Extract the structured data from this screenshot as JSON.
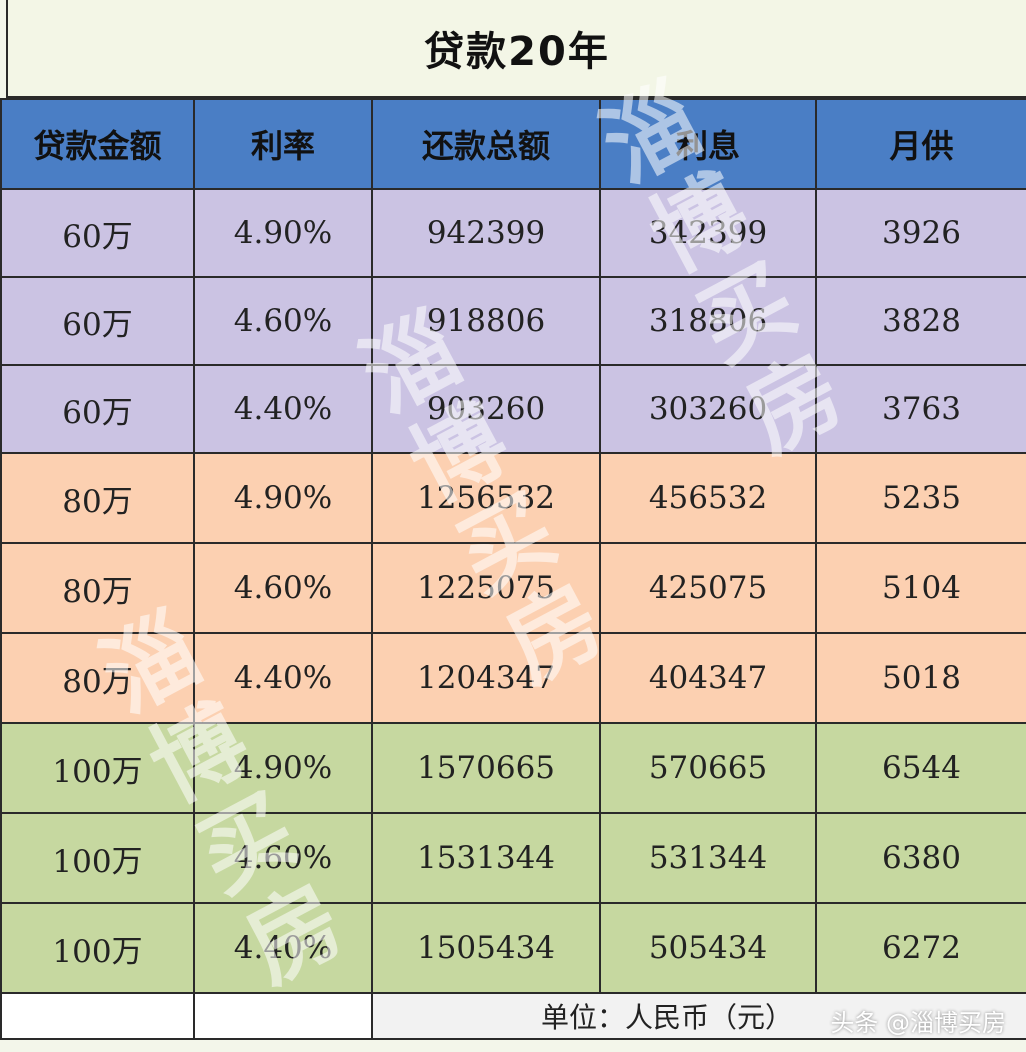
{
  "title": "贷款20年",
  "headers": [
    "贷款金额",
    "利率",
    "还款总额",
    "利息",
    "月供"
  ],
  "rows": [
    {
      "group": "g60",
      "amount": "60万",
      "rate": "4.90%",
      "total": "942399",
      "interest": "342399",
      "monthly": "3926"
    },
    {
      "group": "g60",
      "amount": "60万",
      "rate": "4.60%",
      "total": "918806",
      "interest": "318806",
      "monthly": "3828"
    },
    {
      "group": "g60",
      "amount": "60万",
      "rate": "4.40%",
      "total": "903260",
      "interest": "303260",
      "monthly": "3763"
    },
    {
      "group": "g80",
      "amount": "80万",
      "rate": "4.90%",
      "total": "1256532",
      "interest": "456532",
      "monthly": "5235"
    },
    {
      "group": "g80",
      "amount": "80万",
      "rate": "4.60%",
      "total": "1225075",
      "interest": "425075",
      "monthly": "5104"
    },
    {
      "group": "g80",
      "amount": "80万",
      "rate": "4.40%",
      "total": "1204347",
      "interest": "404347",
      "monthly": "5018"
    },
    {
      "group": "g100",
      "amount": "100万",
      "rate": "4.90%",
      "total": "1570665",
      "interest": "570665",
      "monthly": "6544"
    },
    {
      "group": "g100",
      "amount": "100万",
      "rate": "4.60%",
      "total": "1531344",
      "interest": "531344",
      "monthly": "6380"
    },
    {
      "group": "g100",
      "amount": "100万",
      "rate": "4.40%",
      "total": "1505434",
      "interest": "505434",
      "monthly": "6272"
    }
  ],
  "unit_note": "单位：人民币（元）",
  "watermark_text": "淄博买房",
  "source_tag": "头条 @淄博买房",
  "colors": {
    "header": "#4a7ec5",
    "group_60": "#cbc3e3",
    "group_80": "#fcd0b1",
    "group_100": "#c6d8a0",
    "title_bg": "#f3f6e6"
  }
}
